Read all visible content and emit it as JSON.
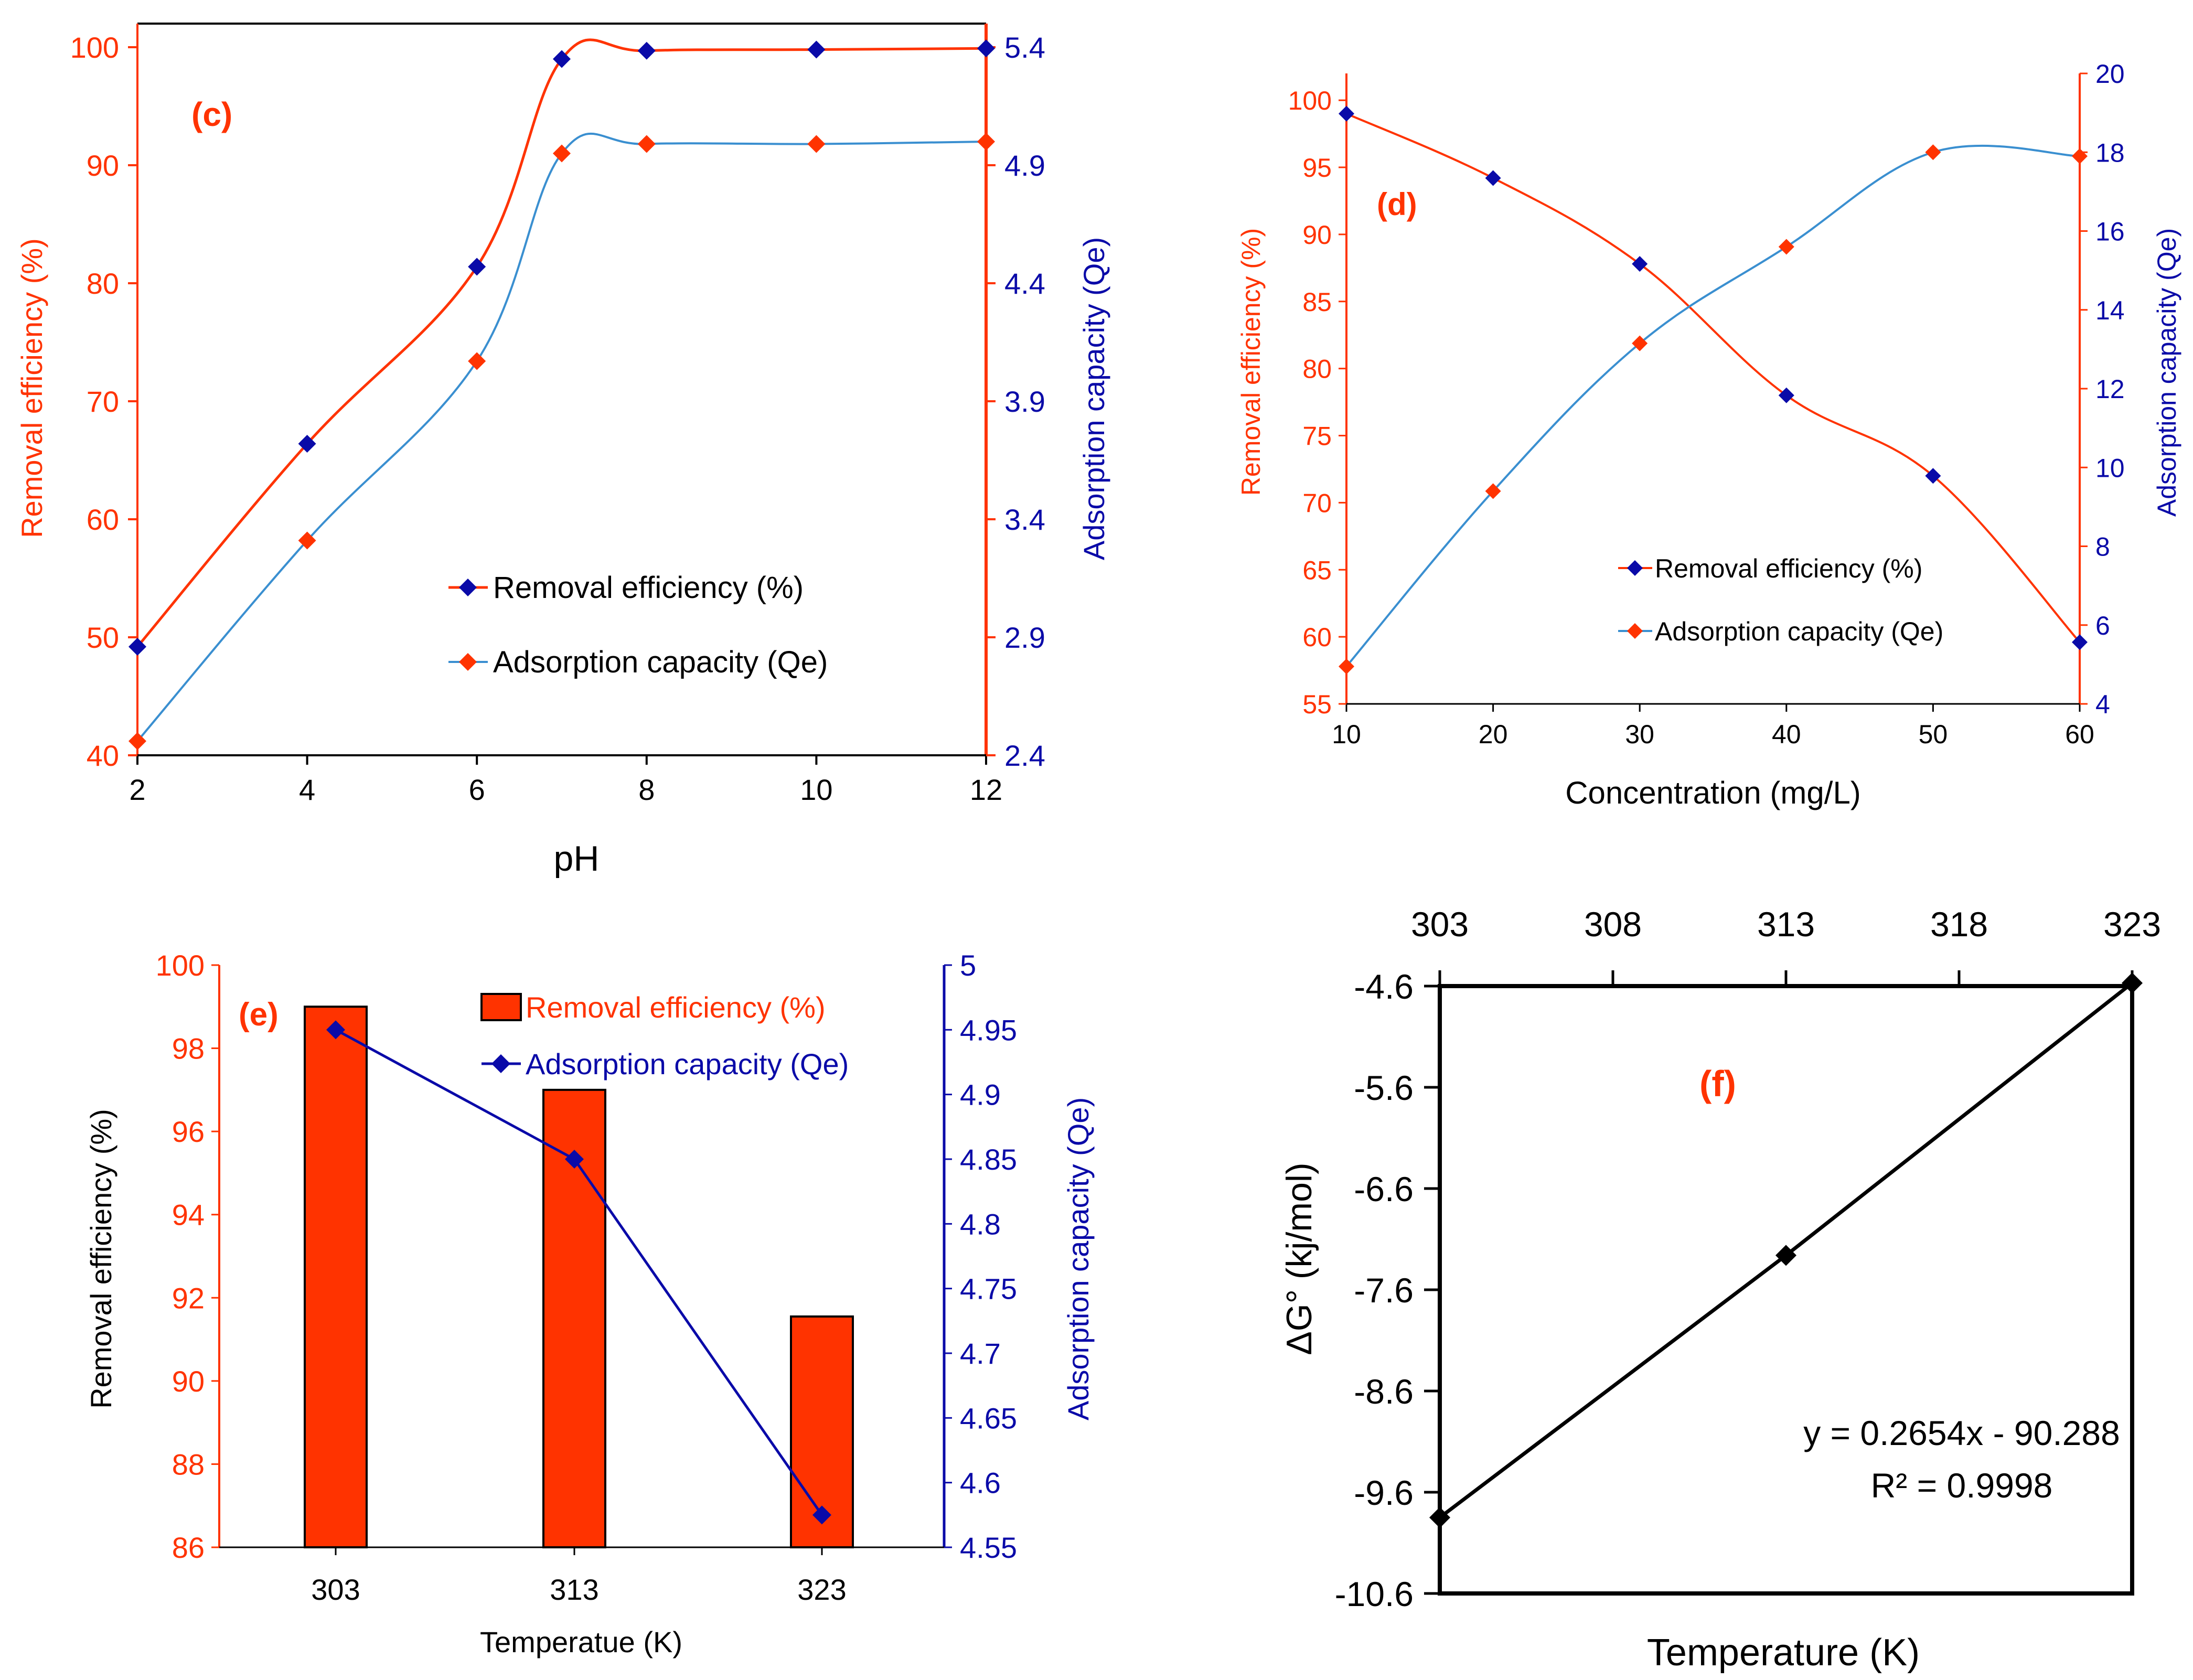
{
  "colors": {
    "orange": "#ff3300",
    "orange_marker": "#ff3300",
    "blue": "#0a0aa8",
    "blue_line": "#3a8fd0",
    "orange_line": "#ff3300",
    "black": "#000000"
  },
  "chart_data": [
    {
      "id": "c",
      "type": "line",
      "panel_label": "(c)",
      "xlabel": "pH",
      "ylabel": "Removal efficiency (%)",
      "y2label": "Adsorption capacity (Qe)",
      "x_ticks": [
        2,
        4,
        6,
        8,
        10,
        12
      ],
      "xlim": [
        2,
        12
      ],
      "y_ticks": [
        40,
        50,
        60,
        70,
        80,
        90,
        100
      ],
      "ylim": [
        40,
        102
      ],
      "y2_ticks": [
        "2.4",
        "2.9",
        "3.4",
        "3.9",
        "4.4",
        "4.9",
        "5.4"
      ],
      "y2lim": [
        2.4,
        5.4
      ],
      "series": [
        {
          "name": "Removal efficiency (%)",
          "axis": "left",
          "marker_color": "blue",
          "line_color": "orange",
          "x": [
            2,
            4,
            6,
            7,
            8,
            10,
            12
          ],
          "values": [
            49.2,
            66.4,
            81.4,
            99,
            99.7,
            99.8,
            99.9
          ]
        },
        {
          "name": "Adsorption capacity (Qe)",
          "axis": "right",
          "marker_color": "orange",
          "line_color": "blue_line",
          "x": [
            2,
            4,
            6,
            7,
            8,
            10,
            12
          ],
          "values": [
            2.46,
            3.31,
            4.07,
            4.95,
            4.99,
            4.99,
            5.0
          ]
        }
      ],
      "legend": [
        "Removal efficiency (%)",
        "Adsorption capacity (Qe)"
      ]
    },
    {
      "id": "d",
      "type": "line",
      "panel_label": "(d)",
      "xlabel": "Concentration (mg/L)",
      "ylabel": "Removal efficiency (%)",
      "y2label": "Adsorption capacity (Qe)",
      "x_ticks": [
        10,
        20,
        30,
        40,
        50,
        60
      ],
      "xlim": [
        10,
        60
      ],
      "y_ticks": [
        55,
        60,
        65,
        70,
        75,
        80,
        85,
        90,
        95,
        100
      ],
      "ylim": [
        55,
        102
      ],
      "y2_ticks": [
        4,
        6,
        8,
        10,
        12,
        14,
        16,
        18,
        20
      ],
      "y2lim": [
        4,
        20
      ],
      "series": [
        {
          "name": "Removal efficiency (%)",
          "axis": "left",
          "marker_color": "blue",
          "line_color": "orange",
          "x": [
            10,
            20,
            30,
            40,
            50,
            60
          ],
          "values": [
            99,
            94.2,
            87.8,
            78,
            72,
            59.6
          ]
        },
        {
          "name": "Adsorption capacity (Qe)",
          "axis": "right",
          "marker_color": "orange",
          "line_color": "blue_line",
          "x": [
            10,
            20,
            30,
            40,
            50,
            60
          ],
          "values": [
            4.95,
            9.4,
            13.15,
            15.6,
            18.0,
            17.9
          ]
        }
      ],
      "legend": [
        "Removal efficiency (%)",
        "Adsorption capacity (Qe)"
      ]
    },
    {
      "id": "e",
      "type": "bar",
      "panel_label": "(e)",
      "xlabel": "Temperatue (K)",
      "ylabel": "Removal efficiency (%)",
      "y2label": "Adsorption capacity (Qe)",
      "categories": [
        "303",
        "313",
        "323"
      ],
      "y_ticks": [
        86,
        88,
        90,
        92,
        94,
        96,
        98,
        100
      ],
      "ylim": [
        86,
        100
      ],
      "y2_ticks": [
        "4.55",
        "4.6",
        "4.65",
        "4.7",
        "4.75",
        "4.8",
        "4.85",
        "4.9",
        "4.95",
        "5"
      ],
      "y2lim": [
        4.55,
        5.0
      ],
      "series": [
        {
          "name": "Removal efficiency (%)",
          "kind": "bar",
          "axis": "left",
          "values": [
            99,
            97,
            91.55
          ]
        },
        {
          "name": "Adsorption capacity (Qe)",
          "kind": "line",
          "axis": "right",
          "values": [
            4.95,
            4.85,
            4.575
          ]
        }
      ],
      "legend": [
        "Removal efficiency (%)",
        "Adsorption capacity (Qe)"
      ]
    },
    {
      "id": "f",
      "type": "scatter",
      "panel_label": "(f)",
      "xlabel": "Temperature (K)",
      "ylabel": "ΔG° (kj/mol)",
      "x_ticks": [
        303,
        308,
        313,
        318,
        323
      ],
      "xlim": [
        303,
        323
      ],
      "x_axis_position": "top",
      "y_ticks": [
        "-4.6",
        "-5.6",
        "-6.6",
        "-7.6",
        "-8.6",
        "-9.6",
        "-10.6"
      ],
      "ylim": [
        -10.6,
        -4.6
      ],
      "series": [
        {
          "name": "ΔG°",
          "x": [
            303,
            313,
            323
          ],
          "values": [
            -9.85,
            -7.26,
            -4.57
          ]
        }
      ],
      "equation": "y = 0.2654x - 90.288",
      "r_squared": "R² = 0.9998"
    }
  ]
}
